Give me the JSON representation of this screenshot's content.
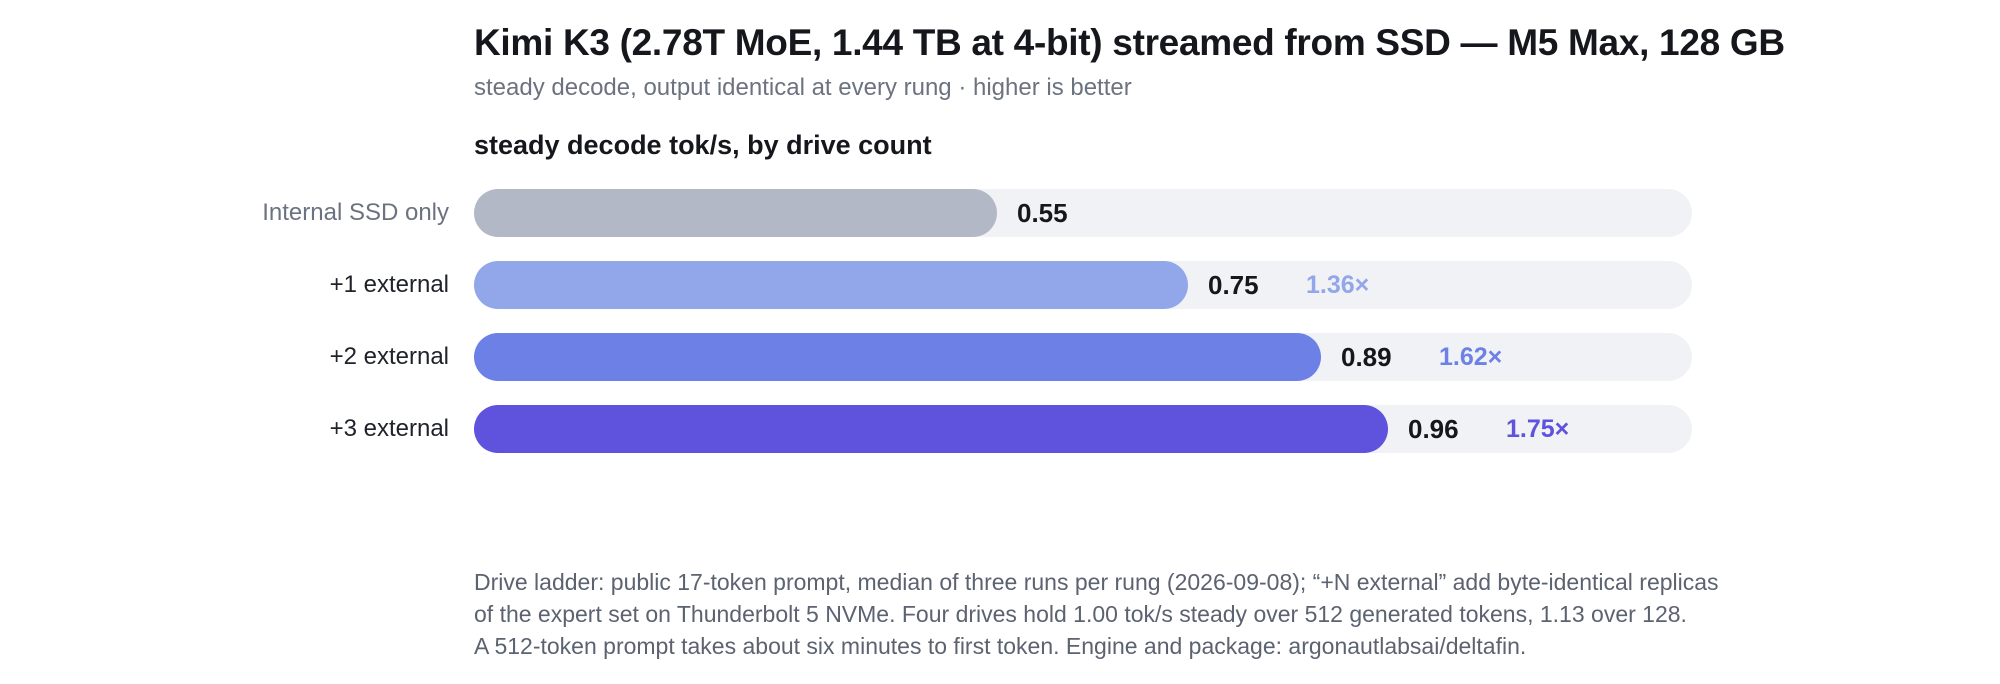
{
  "header": {
    "title": "Kimi K3 (2.78T MoE, 1.44 TB at 4-bit) streamed from SSD — M5 Max, 128 GB",
    "subtitle": "steady decode, output identical at every rung · higher is better"
  },
  "chart_data": {
    "type": "bar",
    "orientation": "horizontal",
    "title": "steady decode tok/s, by drive count",
    "categories": [
      "Internal SSD only",
      "+1 external",
      "+2 external",
      "+3 external"
    ],
    "values": [
      0.55,
      0.75,
      0.89,
      0.96
    ],
    "value_labels": [
      "0.55",
      "0.75",
      "0.89",
      "0.96"
    ],
    "speedup_labels": [
      "",
      "1.36×",
      "1.62×",
      "1.75×"
    ],
    "colors": [
      "#b3b8c6",
      "#92a6ea",
      "#6d80e6",
      "#5f52dd"
    ],
    "track_color": "#f1f2f6",
    "xlim": [
      0,
      1.28
    ],
    "grid": false,
    "legend": "none"
  },
  "footnote": {
    "lines": [
      "Drive ladder: public 17-token prompt, median of three runs per rung (2026-09-08); “+N external” add byte-identical replicas",
      "of the expert set on Thunderbolt 5 NVMe. Four drives hold 1.00 tok/s steady over 512 generated tokens, 1.13 over 128.",
      "A 512-token prompt takes about six minutes to first token. Engine and package: argonautlabsai/deltafin."
    ]
  }
}
